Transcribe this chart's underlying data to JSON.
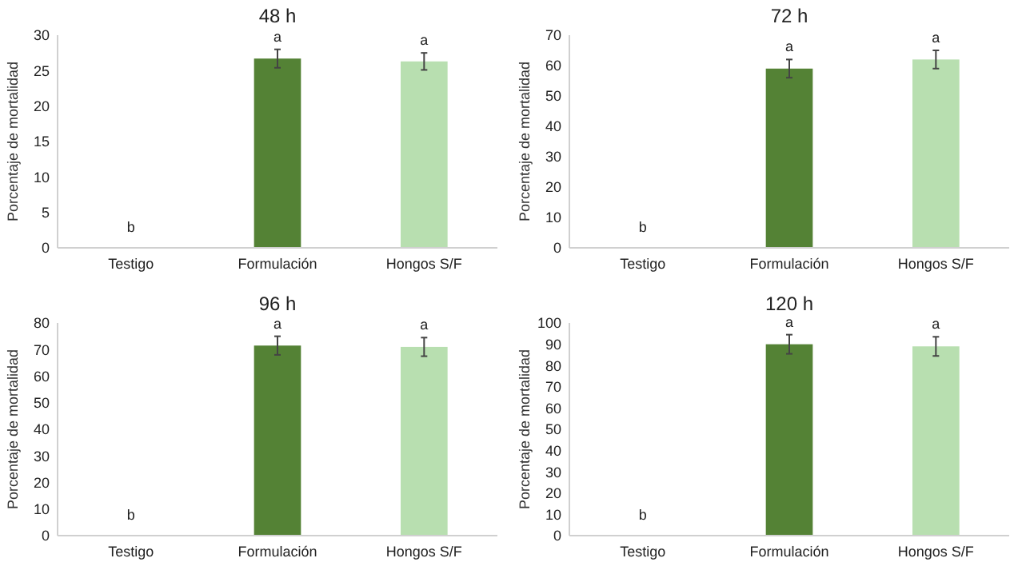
{
  "chart_data": [
    {
      "type": "bar",
      "title": "48 h",
      "ylabel": "Porcentaje de mortalidad",
      "categories": [
        "Testigo",
        "Formulación",
        "Hongos S/F"
      ],
      "values": [
        0,
        26.7,
        26.3
      ],
      "colors": [
        "#548235",
        "#548235",
        "#b8dfb0"
      ],
      "errors": [
        null,
        1.3,
        1.2
      ],
      "ylim": [
        0,
        30
      ],
      "yticks": [
        0,
        5,
        10,
        15,
        20,
        25,
        30
      ],
      "annotations": [
        {
          "text": "b",
          "x": "Testigo",
          "y": 0
        },
        {
          "text": "a",
          "x": "Formulación",
          "y": 26.7
        },
        {
          "text": "a",
          "x": "Hongos S/F",
          "y": 26.3
        }
      ]
    },
    {
      "type": "bar",
      "title": "72 h",
      "ylabel": "Porcentaje de mortalidad",
      "categories": [
        "Testigo",
        "Formulación",
        "Hongos S/F"
      ],
      "values": [
        0,
        59,
        62
      ],
      "colors": [
        "#548235",
        "#548235",
        "#b8dfb0"
      ],
      "errors": [
        null,
        3,
        3
      ],
      "ylim": [
        0,
        70
      ],
      "yticks": [
        0,
        10,
        20,
        30,
        40,
        50,
        60,
        70
      ],
      "annotations": [
        {
          "text": "b",
          "x": "Testigo",
          "y": 0
        },
        {
          "text": "a",
          "x": "Formulación",
          "y": 59
        },
        {
          "text": "a",
          "x": "Hongos S/F",
          "y": 62
        }
      ]
    },
    {
      "type": "bar",
      "title": "96 h",
      "ylabel": "Porcentaje de mortalidad",
      "categories": [
        "Testigo",
        "Formulación",
        "Hongos S/F"
      ],
      "values": [
        0,
        71.5,
        71
      ],
      "colors": [
        "#548235",
        "#548235",
        "#b8dfb0"
      ],
      "errors": [
        null,
        3.5,
        3.5
      ],
      "ylim": [
        0,
        80
      ],
      "yticks": [
        0,
        10,
        20,
        30,
        40,
        50,
        60,
        70,
        80
      ],
      "annotations": [
        {
          "text": "b",
          "x": "Testigo",
          "y": 0
        },
        {
          "text": "a",
          "x": "Formulación",
          "y": 71.5
        },
        {
          "text": "a",
          "x": "Hongos S/F",
          "y": 71
        }
      ]
    },
    {
      "type": "bar",
      "title": "120 h",
      "ylabel": "Porcentaje de mortalidad",
      "categories": [
        "Testigo",
        "Formulación",
        "Hongos S/F"
      ],
      "values": [
        0,
        90,
        89
      ],
      "colors": [
        "#548235",
        "#548235",
        "#b8dfb0"
      ],
      "errors": [
        null,
        4.5,
        4.5
      ],
      "ylim": [
        0,
        100
      ],
      "yticks": [
        0,
        10,
        20,
        30,
        40,
        50,
        60,
        70,
        80,
        90,
        100
      ],
      "annotations": [
        {
          "text": "b",
          "x": "Testigo",
          "y": 0
        },
        {
          "text": "a",
          "x": "Formulación",
          "y": 90
        },
        {
          "text": "a",
          "x": "Hongos S/F",
          "y": 89
        }
      ]
    }
  ]
}
